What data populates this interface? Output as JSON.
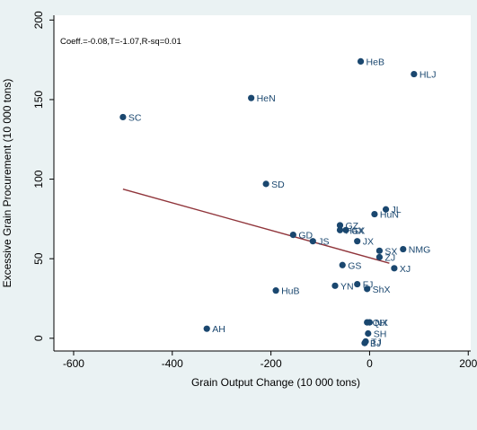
{
  "chart_data": {
    "type": "scatter",
    "annotation": "Coeff.=-0.08,T=-1.07,R-sq=0.01",
    "xlabel": "Grain Output Change (10 000 tons)",
    "ylabel": "Excessive Grain Procurement (10 000 tons)",
    "xlim": [
      -640,
      205
    ],
    "ylim": [
      -8,
      203
    ],
    "xticks": [
      -600,
      -400,
      -200,
      0,
      200
    ],
    "yticks": [
      0,
      50,
      100,
      150,
      200
    ],
    "grid": false,
    "legend": "none",
    "colors": {
      "point": "#1a476f",
      "fit": "#90353b",
      "plot_bg": "#ffffff",
      "page_bg": "#eaf2f3"
    },
    "fit_line": {
      "x": [
        -500,
        40
      ],
      "y": [
        93.7,
        47.2
      ]
    },
    "points": [
      {
        "label": "HeB",
        "x": -18,
        "y": 174
      },
      {
        "label": "HLJ",
        "x": 90,
        "y": 166
      },
      {
        "label": "HeN",
        "x": -240,
        "y": 151
      },
      {
        "label": "SC",
        "x": -500,
        "y": 139
      },
      {
        "label": "SD",
        "x": -210,
        "y": 97
      },
      {
        "label": "JL",
        "x": 33,
        "y": 81
      },
      {
        "label": "HuN",
        "x": 10,
        "y": 78
      },
      {
        "label": "GZ",
        "x": -60,
        "y": 71
      },
      {
        "label": "GX",
        "x": -48,
        "y": 68
      },
      {
        "label": "HaX",
        "x": -60,
        "y": 68
      },
      {
        "label": "GD",
        "x": -155,
        "y": 65
      },
      {
        "label": "JS",
        "x": -115,
        "y": 61
      },
      {
        "label": "JX",
        "x": -25,
        "y": 61
      },
      {
        "label": "NMG",
        "x": 68,
        "y": 56
      },
      {
        "label": "SX",
        "x": 20,
        "y": 55
      },
      {
        "label": "ZJ",
        "x": 20,
        "y": 51
      },
      {
        "label": "GS",
        "x": -55,
        "y": 46
      },
      {
        "label": "XJ",
        "x": 50,
        "y": 44
      },
      {
        "label": "YN",
        "x": -70,
        "y": 33
      },
      {
        "label": "FJ",
        "x": -25,
        "y": 34
      },
      {
        "label": "ShX",
        "x": -5,
        "y": 31
      },
      {
        "label": "HuB",
        "x": -190,
        "y": 30
      },
      {
        "label": "QH",
        "x": -5,
        "y": 10
      },
      {
        "label": "NX",
        "x": 0,
        "y": 10
      },
      {
        "label": "AH",
        "x": -330,
        "y": 6
      },
      {
        "label": "SH",
        "x": -3,
        "y": 3
      },
      {
        "label": "TJ",
        "x": -8,
        "y": -2
      },
      {
        "label": "BJ",
        "x": -10,
        "y": -3
      }
    ]
  }
}
